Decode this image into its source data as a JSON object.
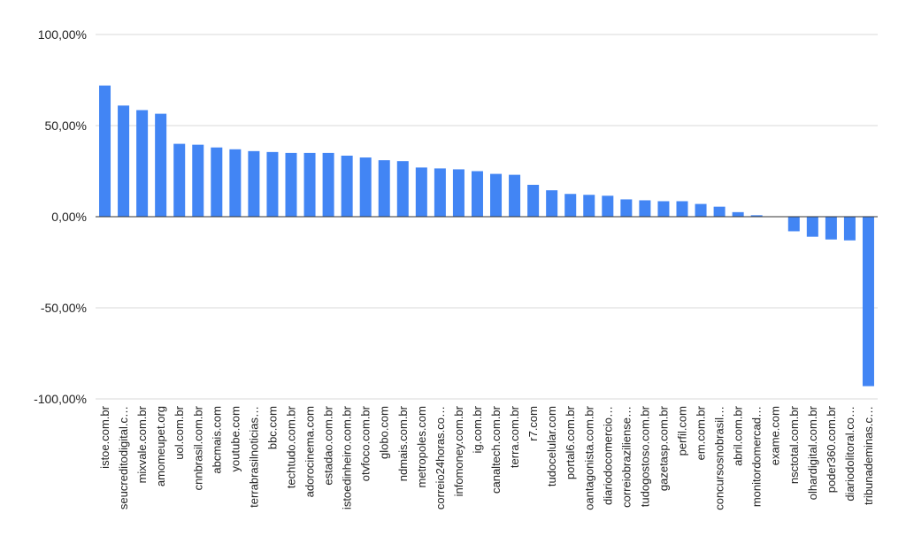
{
  "chart_data": {
    "type": "bar",
    "title": "",
    "xlabel": "",
    "ylabel": "",
    "ylim": [
      -100,
      100
    ],
    "yticks": [
      -100,
      -50,
      0,
      50,
      100
    ],
    "ytick_labels": [
      "-100,00%",
      "-50,00%",
      "0,00%",
      "50,00%",
      "100,00%"
    ],
    "grid": true,
    "legend": "none",
    "bar_color": "#4285f4",
    "categories": [
      "istoe.com.br",
      "seucreditodigital.c…",
      "mixvale.com.br",
      "amomeupet.org",
      "uol.com.br",
      "cnnbrasil.com.br",
      "abcmais.com",
      "youtube.com",
      "terrabrasilnoticias…",
      "bbc.com",
      "techtudo.com.br",
      "adorocinema.com",
      "estadao.com.br",
      "istoedinheiro.com.br",
      "otvfoco.com.br",
      "globo.com",
      "ndmais.com.br",
      "metropoles.com",
      "correio24horas.co…",
      "infomoney.com.br",
      "ig.com.br",
      "canaltech.com.br",
      "terra.com.br",
      "r7.com",
      "tudocelular.com",
      "portal6.com.br",
      "oantagonista.com.br",
      "diariodocomercio…",
      "correiobraziliense…",
      "tudogostoso.com.br",
      "gazetasp.com.br",
      "perfil.com",
      "em.com.br",
      "concursosnobrasil…",
      "abril.com.br",
      "monitordomercad…",
      "exame.com",
      "nsctotal.com.br",
      "olhardigital.com.br",
      "poder360.com.br",
      "diariodolitoral.co…",
      "tribunademinas.c…"
    ],
    "values": [
      72,
      61,
      58.5,
      56.5,
      40,
      39.5,
      38,
      37,
      36,
      35.5,
      35,
      35,
      35,
      33.5,
      32.5,
      31,
      30.5,
      27,
      26.5,
      26,
      25,
      23.5,
      23,
      17.5,
      14.5,
      12.5,
      12,
      11.5,
      9.5,
      9,
      8.5,
      8.5,
      7,
      5.5,
      2.5,
      0.8,
      0.2,
      -8,
      -11,
      -12.5,
      -13,
      -93
    ]
  }
}
